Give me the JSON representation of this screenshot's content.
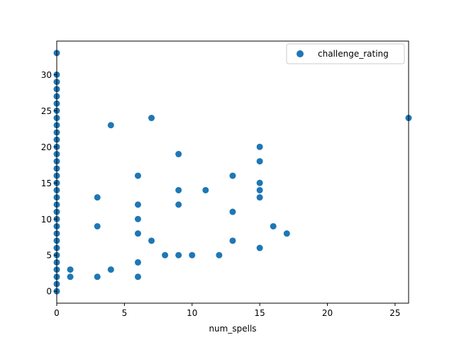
{
  "chart_data": {
    "type": "scatter",
    "title": "",
    "xlabel": "num_spells",
    "ylabel": "",
    "xlim": [
      0,
      26
    ],
    "ylim": [
      -1.65,
      34.65
    ],
    "xticks": [
      0,
      5,
      10,
      15,
      20,
      25
    ],
    "yticks": [
      0,
      5,
      10,
      15,
      20,
      25,
      30
    ],
    "grid": false,
    "legend": {
      "position": "top-right"
    },
    "marker_color": "#1f77b4",
    "series": [
      {
        "name": "challenge_rating",
        "points": [
          [
            0,
            0
          ],
          [
            0,
            1
          ],
          [
            0,
            2
          ],
          [
            0,
            3
          ],
          [
            0,
            4
          ],
          [
            0,
            5
          ],
          [
            0,
            6
          ],
          [
            0,
            7
          ],
          [
            0,
            8
          ],
          [
            0,
            9
          ],
          [
            0,
            10
          ],
          [
            0,
            11
          ],
          [
            0,
            12
          ],
          [
            0,
            13
          ],
          [
            0,
            14
          ],
          [
            0,
            15
          ],
          [
            0,
            16
          ],
          [
            0,
            17
          ],
          [
            0,
            18
          ],
          [
            0,
            19
          ],
          [
            0,
            20
          ],
          [
            0,
            21
          ],
          [
            0,
            22
          ],
          [
            0,
            23
          ],
          [
            0,
            24
          ],
          [
            0,
            25
          ],
          [
            0,
            26
          ],
          [
            0,
            27
          ],
          [
            0,
            28
          ],
          [
            0,
            29
          ],
          [
            0,
            30
          ],
          [
            0,
            33
          ],
          [
            1,
            2
          ],
          [
            1,
            3
          ],
          [
            3,
            2
          ],
          [
            3,
            9
          ],
          [
            3,
            13
          ],
          [
            4,
            3
          ],
          [
            4,
            23
          ],
          [
            6,
            2
          ],
          [
            6,
            4
          ],
          [
            6,
            8
          ],
          [
            6,
            10
          ],
          [
            6,
            12
          ],
          [
            6,
            16
          ],
          [
            7,
            7
          ],
          [
            7,
            24
          ],
          [
            8,
            5
          ],
          [
            9,
            5
          ],
          [
            9,
            12
          ],
          [
            9,
            14
          ],
          [
            9,
            19
          ],
          [
            10,
            5
          ],
          [
            11,
            14
          ],
          [
            12,
            5
          ],
          [
            13,
            7
          ],
          [
            13,
            11
          ],
          [
            13,
            16
          ],
          [
            15,
            6
          ],
          [
            15,
            13
          ],
          [
            15,
            14
          ],
          [
            15,
            15
          ],
          [
            15,
            18
          ],
          [
            15,
            20
          ],
          [
            16,
            9
          ],
          [
            17,
            8
          ],
          [
            26,
            24
          ]
        ]
      }
    ]
  }
}
